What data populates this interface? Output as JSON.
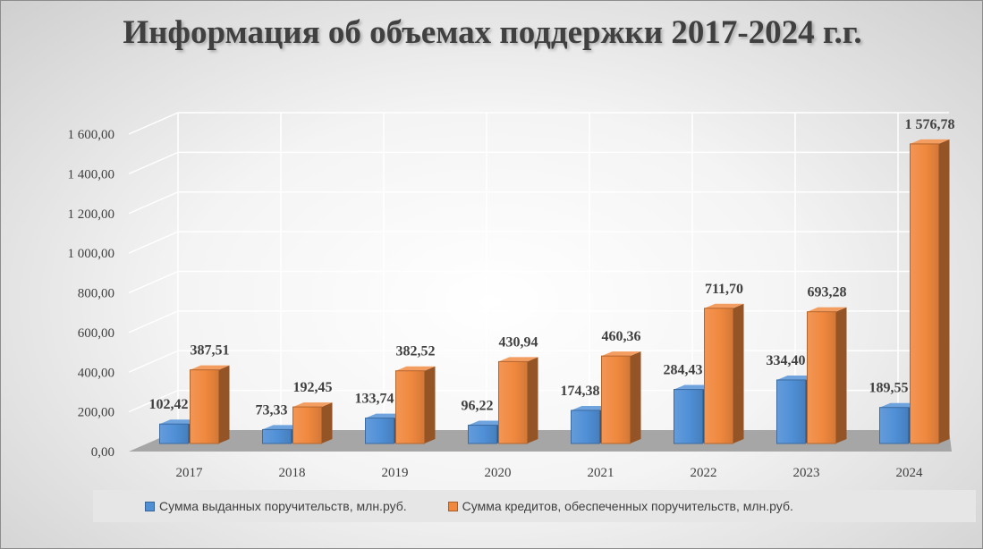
{
  "chart_data": {
    "type": "bar",
    "title": "Информация об объемах поддержки 2017-2024 г.г.",
    "categories": [
      "2017",
      "2018",
      "2019",
      "2020",
      "2021",
      "2022",
      "2023",
      "2024"
    ],
    "series": [
      {
        "name": "Сумма выданных поручительств, млн.руб.",
        "values": [
          102.42,
          73.33,
          133.74,
          96.22,
          174.38,
          284.43,
          334.4,
          189.55
        ],
        "labels": [
          "102,42",
          "73,33",
          "133,74",
          "96,22",
          "174,38",
          "284,43",
          "334,40",
          "189,55"
        ],
        "color": "#4f8fd6"
      },
      {
        "name": "Сумма кредитов, обеспеченных поручительств, млн.руб.",
        "values": [
          387.51,
          192.45,
          382.52,
          430.94,
          460.36,
          711.7,
          693.28,
          1576.78
        ],
        "labels": [
          "387,51",
          "192,45",
          "382,52",
          "430,94",
          "460,36",
          "711,70",
          "693,28",
          "1 576,78"
        ],
        "color": "#f0883e"
      }
    ],
    "yticks": [
      "0,00",
      "200,00",
      "400,00",
      "600,00",
      "800,00",
      "1 000,00",
      "1 200,00",
      "1 400,00",
      "1 600,00"
    ],
    "ylim": [
      0,
      1600
    ],
    "grid": true,
    "legend_position": "bottom"
  }
}
